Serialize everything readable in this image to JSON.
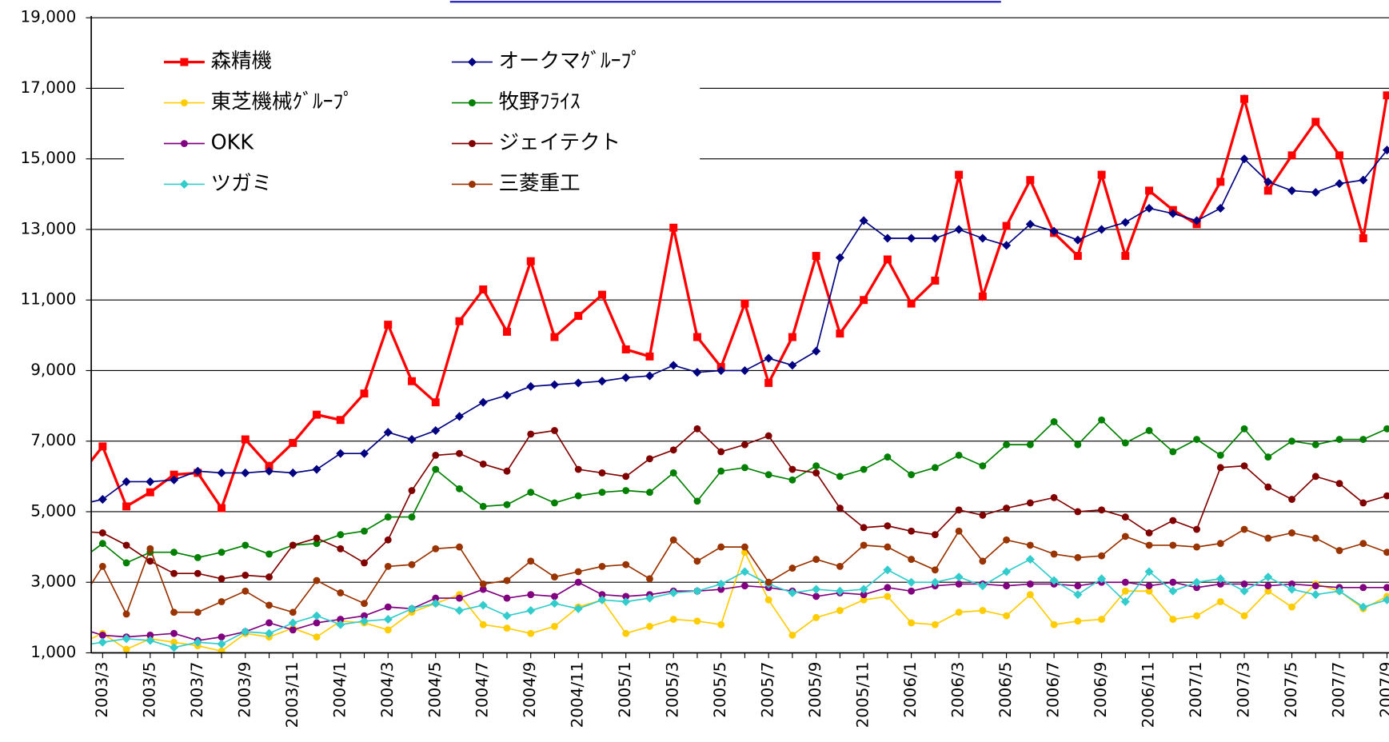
{
  "chart_data": {
    "type": "line",
    "categories": [
      null,
      "2003/3",
      null,
      "2003/5",
      null,
      "2003/7",
      null,
      "2003/9",
      null,
      "2003/11",
      null,
      "2004/1",
      null,
      "2004/3",
      null,
      "2004/5",
      null,
      "2004/7",
      null,
      "2004/9",
      null,
      "2004/11",
      null,
      "2005/1",
      null,
      "2005/3",
      null,
      "2005/5",
      null,
      "2005/7",
      null,
      "2005/9",
      null,
      "2005/11",
      null,
      "2006/1",
      null,
      "2006/3",
      null,
      "2006/5",
      null,
      "2006/7",
      null,
      "2006/9",
      null,
      "2006/11",
      null,
      "2007/1",
      null,
      "2007/3",
      null,
      "2007/5",
      null,
      "2007/7",
      null,
      "2007/9"
    ],
    "ylim": [
      1000,
      19000
    ],
    "yticks": [
      {
        "value": 1000,
        "label": "1,000"
      },
      {
        "value": 3000,
        "label": "3,000"
      },
      {
        "value": 5000,
        "label": "5,000"
      },
      {
        "value": 7000,
        "label": "7,000"
      },
      {
        "value": 9000,
        "label": "9,000"
      },
      {
        "value": 11000,
        "label": "11,000"
      },
      {
        "value": 13000,
        "label": "13,000"
      },
      {
        "value": 15000,
        "label": "15,000"
      },
      {
        "value": 17000,
        "label": "17,000"
      },
      {
        "value": 19000,
        "label": "19,000"
      }
    ],
    "grid": true,
    "series": [
      {
        "name": "森精機",
        "color": "#ff0000",
        "marker": "square",
        "values": [
          6000,
          6850,
          5150,
          5550,
          6050,
          6100,
          5100,
          7050,
          6300,
          6950,
          7750,
          7600,
          8350,
          10300,
          8700,
          8100,
          10400,
          11300,
          10100,
          12100,
          9950,
          10550,
          11150,
          9600,
          9400,
          13050,
          9950,
          9100,
          10900,
          8650,
          9950,
          12250,
          10050,
          11000,
          12150,
          10900,
          11550,
          14550,
          11100,
          13100,
          14400,
          12900,
          12250,
          14550,
          12250,
          14100,
          13550,
          13150,
          14350,
          16700,
          14100,
          15100,
          16050,
          15100,
          12750,
          16800
        ]
      },
      {
        "name": "オークマｸﾞﾙｰﾌﾟ",
        "color": "#000080",
        "marker": "diamond",
        "values": [
          5200,
          5350,
          5850,
          5850,
          5900,
          6150,
          6100,
          6100,
          6150,
          6100,
          6200,
          6650,
          6650,
          7250,
          7050,
          7300,
          7700,
          8100,
          8300,
          8550,
          8600,
          8650,
          8700,
          8800,
          8850,
          9150,
          8950,
          9000,
          9000,
          9350,
          9150,
          9550,
          12200,
          13250,
          12750,
          12750,
          12750,
          13000,
          12750,
          12550,
          13150,
          12950,
          12700,
          13000,
          13200,
          13600,
          13450,
          13250,
          13600,
          15000,
          14350,
          14100,
          14050,
          14300,
          14400,
          15250
        ]
      },
      {
        "name": "東芝機械ｸﾞﾙｰﾌﾟ",
        "color": "#ffcc00",
        "marker": "circle",
        "values": [
          1250,
          1550,
          1100,
          1400,
          1300,
          1200,
          1050,
          1550,
          1450,
          1700,
          1450,
          1900,
          1850,
          1650,
          2150,
          2400,
          2650,
          1800,
          1700,
          1550,
          1750,
          2300,
          2500,
          1550,
          1750,
          1950,
          1900,
          1800,
          3850,
          2500,
          1500,
          2000,
          2200,
          2500,
          2600,
          1850,
          1800,
          2150,
          2200,
          2050,
          2650,
          1800,
          1900,
          1950,
          2750,
          2750,
          1950,
          2050,
          2450,
          2050,
          2750,
          2300,
          2950,
          2750,
          2250,
          2600
        ]
      },
      {
        "name": "牧野ﾌﾗｲｽ",
        "color": "#008000",
        "marker": "circle",
        "values": [
          3600,
          4100,
          3550,
          3850,
          3850,
          3700,
          3850,
          4050,
          3800,
          4050,
          4100,
          4350,
          4450,
          4850,
          4850,
          6200,
          5650,
          5150,
          5200,
          5550,
          5250,
          5450,
          5550,
          5600,
          5550,
          6100,
          5300,
          6150,
          6250,
          6050,
          5900,
          6300,
          6000,
          6200,
          6550,
          6050,
          6250,
          6600,
          6300,
          6900,
          6900,
          7550,
          6900,
          7600,
          6950,
          7300,
          6700,
          7050,
          6600,
          7350,
          6550,
          7000,
          6900,
          7050,
          7050,
          7350
        ]
      },
      {
        "name": "OKK",
        "color": "#800080",
        "marker": "circle",
        "values": [
          1700,
          1500,
          1450,
          1500,
          1550,
          1350,
          1450,
          1600,
          1850,
          1650,
          1850,
          1950,
          2050,
          2300,
          2250,
          2550,
          2550,
          2800,
          2550,
          2650,
          2600,
          3000,
          2650,
          2600,
          2650,
          2750,
          2750,
          2800,
          2900,
          2850,
          2750,
          2600,
          2700,
          2650,
          2850,
          2750,
          2900,
          2950,
          2950,
          2900,
          2950,
          2950,
          2900,
          3000,
          3000,
          2900,
          3000,
          2850,
          2950,
          2950,
          2900,
          2950,
          2900,
          2850,
          2850,
          2850
        ]
      },
      {
        "name": "ジェイテクト",
        "color": "#800000",
        "marker": "circle",
        "values": [
          4450,
          4400,
          4050,
          3600,
          3250,
          3250,
          3100,
          3200,
          3150,
          4050,
          4250,
          3950,
          3550,
          4200,
          5600,
          6600,
          6650,
          6350,
          6150,
          7200,
          7300,
          6200,
          6100,
          6000,
          6500,
          6750,
          7350,
          6700,
          6900,
          7150,
          6200,
          6100,
          5100,
          4550,
          4600,
          4450,
          4350,
          5050,
          4900,
          5100,
          5250,
          5400,
          5000,
          5050,
          4850,
          4400,
          4750,
          4500,
          6250,
          6300,
          5700,
          5350,
          6000,
          5800,
          5250,
          5450
        ]
      },
      {
        "name": "ツガミ",
        "color": "#33cccc",
        "marker": "diamond",
        "values": [
          1200,
          1300,
          1400,
          1350,
          1150,
          1300,
          1250,
          1600,
          1550,
          1850,
          2050,
          1800,
          1900,
          1950,
          2250,
          2400,
          2200,
          2350,
          2050,
          2200,
          2400,
          2250,
          2500,
          2450,
          2550,
          2700,
          2750,
          2950,
          3300,
          2950,
          2700,
          2800,
          2750,
          2800,
          3350,
          3000,
          3000,
          3150,
          2900,
          3300,
          3650,
          3050,
          2650,
          3100,
          2450,
          3300,
          2750,
          3000,
          3100,
          2750,
          3150,
          2800,
          2650,
          2750,
          2300,
          2500
        ]
      },
      {
        "name": "三菱重工",
        "color": "#993300",
        "marker": "circle",
        "values": [
          2400,
          3450,
          2100,
          3950,
          2150,
          2150,
          2450,
          2750,
          2350,
          2150,
          3050,
          2700,
          2400,
          3450,
          3500,
          3950,
          4000,
          2950,
          3050,
          3600,
          3150,
          3300,
          3450,
          3500,
          3100,
          4200,
          3600,
          4000,
          4000,
          3000,
          3400,
          3650,
          3450,
          4050,
          4000,
          3650,
          3350,
          4450,
          3600,
          4200,
          4050,
          3800,
          3700,
          3750,
          4300,
          4050,
          4050,
          4000,
          4100,
          4500,
          4250,
          4400,
          4250,
          3900,
          4100,
          3850
        ]
      }
    ]
  }
}
